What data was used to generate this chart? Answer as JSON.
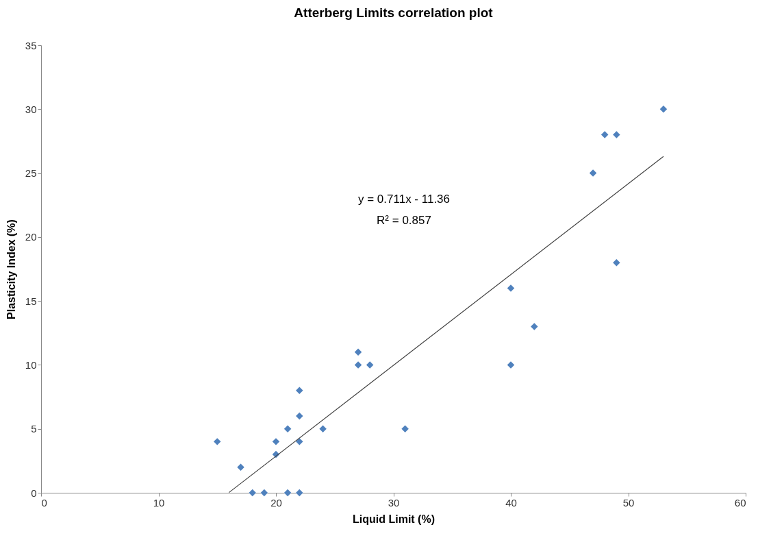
{
  "chart_data": {
    "type": "scatter",
    "title": "Atterberg Limits correlation plot",
    "xlabel": "Liquid Limit (%)",
    "ylabel": "Plasticity Index (%)",
    "xlim": [
      0,
      60
    ],
    "xticks": [
      0,
      10,
      20,
      30,
      40,
      50,
      60
    ],
    "ylim": [
      0,
      35
    ],
    "yticks": [
      0,
      5,
      10,
      15,
      20,
      25,
      30,
      35
    ],
    "grid": false,
    "series": [
      {
        "marker": "diamond",
        "color": "#4f81bd",
        "x": [
          15,
          17,
          18,
          19,
          20,
          20,
          21,
          21,
          22,
          22,
          22,
          22,
          24,
          27,
          27,
          28,
          31,
          40,
          40,
          42,
          47,
          48,
          49,
          49,
          53
        ],
        "values": [
          4,
          2,
          0,
          0,
          4,
          3,
          5,
          0,
          8,
          6,
          4,
          0,
          5,
          11,
          10,
          10,
          5,
          16,
          10,
          13,
          25,
          28,
          28,
          18,
          30
        ]
      },
      {
        "type": "line",
        "marker": "none",
        "color": "#404040",
        "line_style": "solid",
        "x": [
          16,
          53
        ],
        "values": [
          0.02,
          26.3
        ]
      }
    ],
    "annotations": [
      "y = 0.711x - 11.36",
      "R² = 0.857"
    ]
  }
}
